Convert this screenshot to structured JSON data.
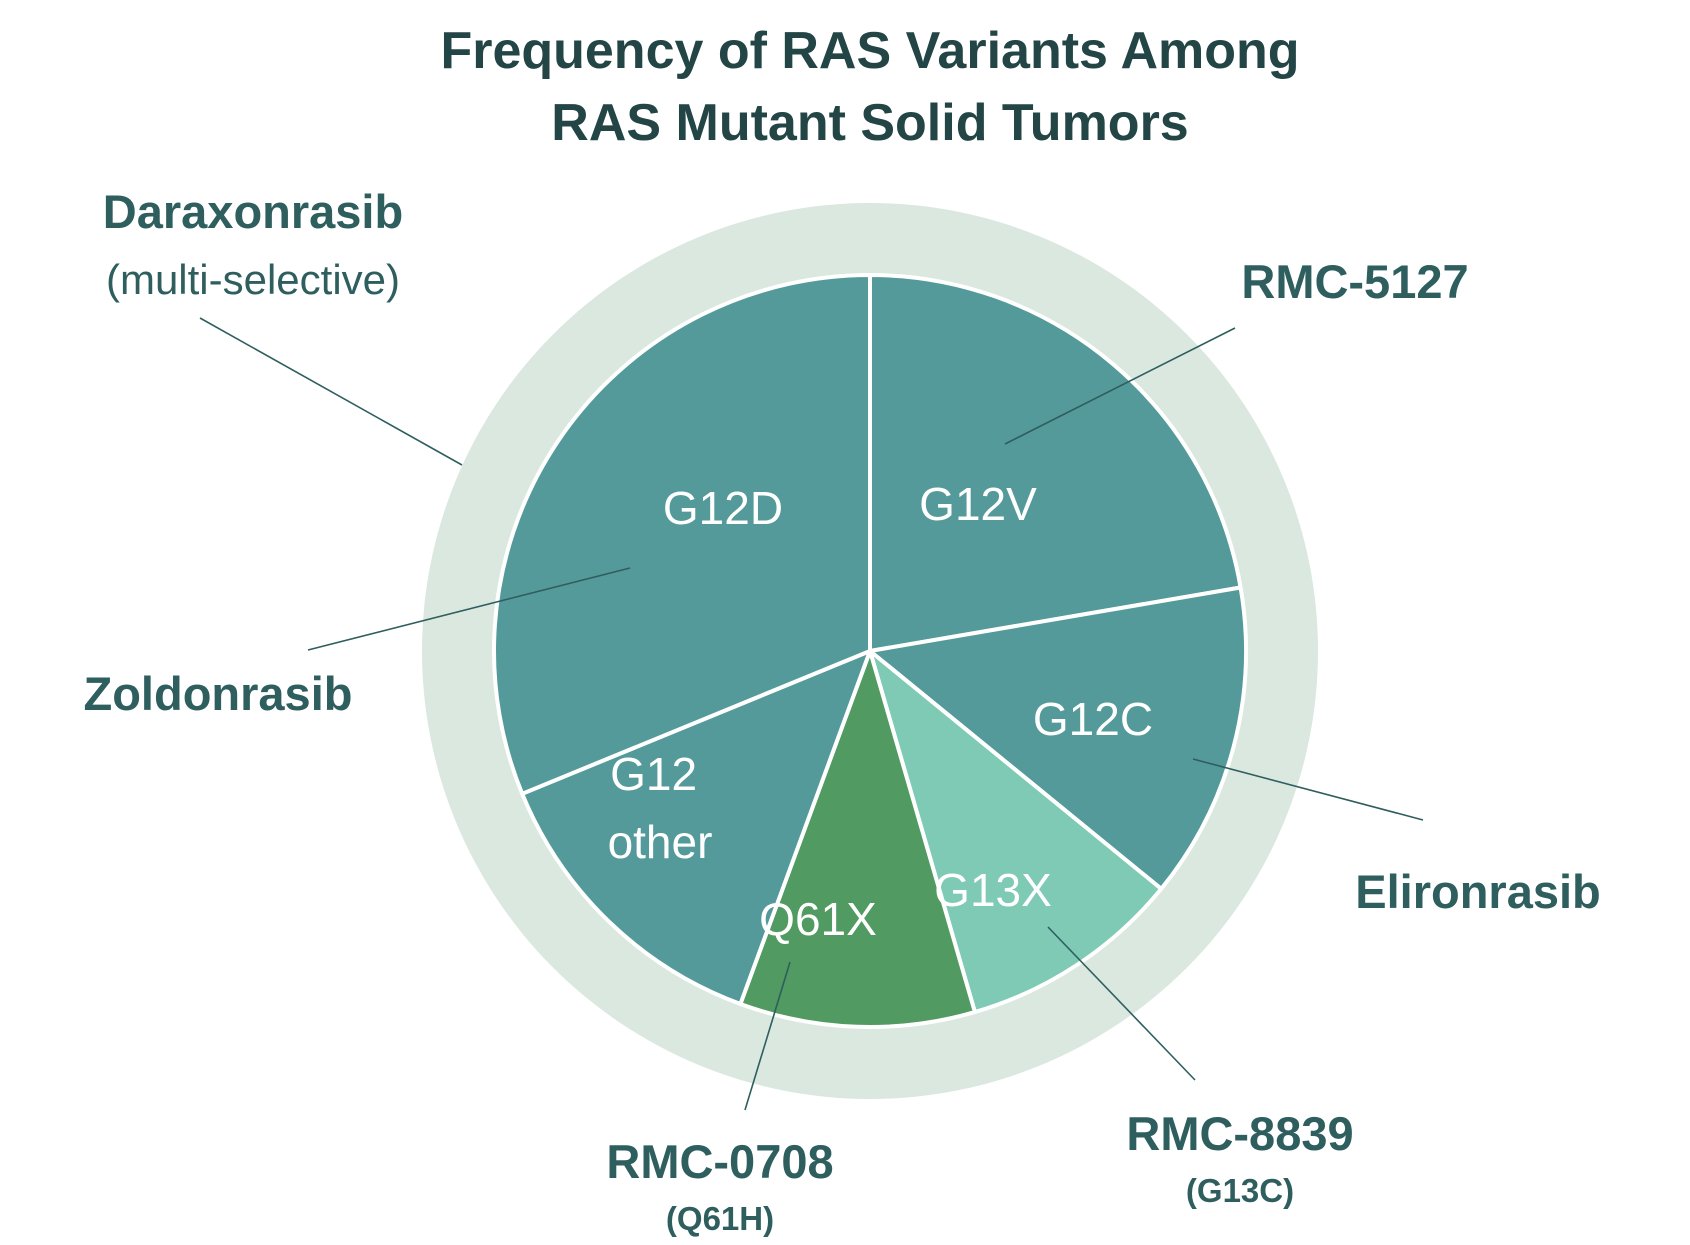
{
  "chart_data": {
    "type": "pie",
    "title_lines": [
      "Frequency of RAS Variants Among",
      "RAS Mutant Solid Tumors"
    ],
    "slices": [
      {
        "label": "G12V",
        "value": 22.3,
        "color": "#559a9a"
      },
      {
        "label": "G12C",
        "value": 13.6,
        "color": "#559a9a"
      },
      {
        "label": "G13X",
        "value": 9.6,
        "color": "#7ecab5"
      },
      {
        "label": "Q61X",
        "value": 10.1,
        "color": "#519a61"
      },
      {
        "label": "G12 other",
        "value": 13.2,
        "color": "#559a9a"
      },
      {
        "label": "G12D",
        "value": 31.2,
        "color": "#559a9a"
      }
    ],
    "ring_color": "#dae8e0",
    "annotations": [
      {
        "main": "Daraxonrasib",
        "sub": "(multi-selective)",
        "target": "ring"
      },
      {
        "main": "RMC-5127",
        "sub": "",
        "target": "G12V"
      },
      {
        "main": "Zoldonrasib",
        "sub": "",
        "target": "G12D"
      },
      {
        "main": "Elironrasib",
        "sub": "",
        "target": "G12C"
      },
      {
        "main": "RMC-0708",
        "sub": "(Q61H)",
        "target": "Q61X"
      },
      {
        "main": "RMC-8839",
        "sub": "(G13C)",
        "target": "G13X"
      }
    ]
  }
}
